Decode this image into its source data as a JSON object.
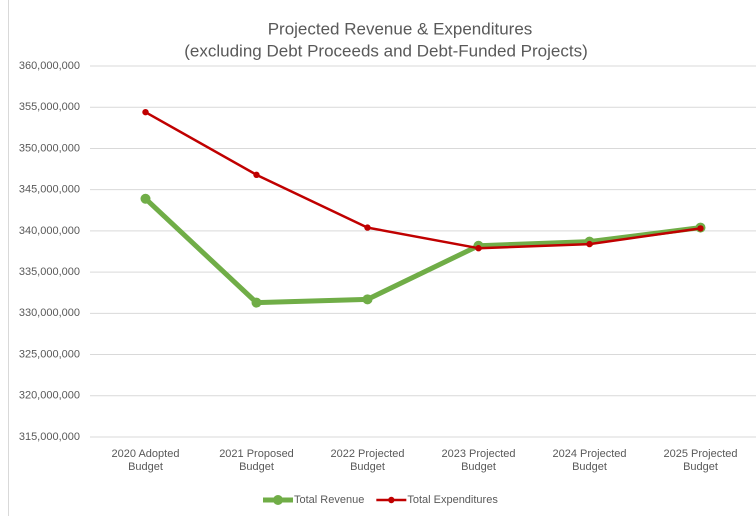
{
  "chart_data": {
    "type": "line",
    "title": "Projected Revenue & Expenditures",
    "subtitle": "(excluding Debt Proceeds and Debt-Funded Projects)",
    "categories": [
      "2020 Adopted Budget",
      "2021 Proposed Budget",
      "2022 Projected Budget",
      "2023 Projected Budget",
      "2024 Projected Budget",
      "2025 Projected Budget"
    ],
    "series": [
      {
        "name": "Total Revenue",
        "color": "#70ad47",
        "values": [
          343900000,
          331300000,
          331700000,
          338200000,
          338700000,
          340400000
        ]
      },
      {
        "name": "Total Expenditures",
        "color": "#c00000",
        "values": [
          354400000,
          346800000,
          340400000,
          337900000,
          338400000,
          340300000
        ]
      }
    ],
    "ylim": [
      315000000,
      360000000
    ],
    "yticks": [
      {
        "value": 315000000,
        "label": "315,000,000"
      },
      {
        "value": 320000000,
        "label": "320,000,000"
      },
      {
        "value": 325000000,
        "label": "325,000,000"
      },
      {
        "value": 330000000,
        "label": "330,000,000"
      },
      {
        "value": 335000000,
        "label": "335,000,000"
      },
      {
        "value": 340000000,
        "label": "340,000,000"
      },
      {
        "value": 345000000,
        "label": "345,000,000"
      },
      {
        "value": 350000000,
        "label": "350,000,000"
      },
      {
        "value": 355000000,
        "label": "355,000,000"
      },
      {
        "value": 360000000,
        "label": "360,000,000"
      }
    ],
    "grid": true,
    "legend": "bottom"
  }
}
